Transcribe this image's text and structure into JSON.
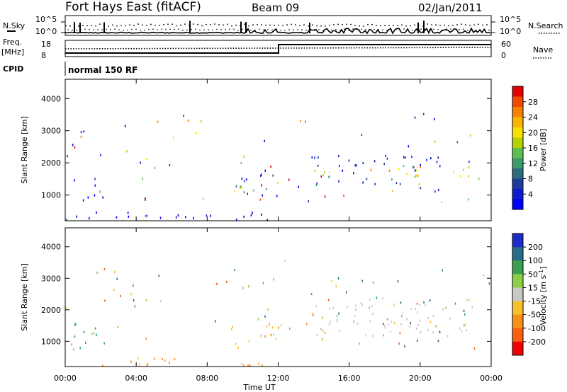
{
  "header": {
    "station": "Fort Hays East (fitACF)",
    "beam": "Beam 09",
    "date": "02/Jan/2011"
  },
  "left_labels": {
    "nsky": "N.Sky",
    "freq": "Freq.",
    "freq_unit": "[MHz]",
    "cpid": "CPID"
  },
  "right_labels": {
    "nsearch": "N.Search",
    "nave": "Nave"
  },
  "cpid_text": "normal 150 RF",
  "noise_axis": {
    "top": "10^5",
    "bottom": "10^0"
  },
  "freq_axis": {
    "left": [
      "18",
      "8"
    ],
    "right": [
      "60",
      "0"
    ]
  },
  "xlabel": "Time UT",
  "colorbars": {
    "power": {
      "title": "Power [dB]",
      "ticks": [
        "28",
        "24",
        "20",
        "16",
        "12",
        "8",
        "4"
      ],
      "colors": [
        "#e00000",
        "#f04a00",
        "#f88000",
        "#f8b400",
        "#f8e000",
        "#b4d200",
        "#5cc050",
        "#3c9c6c",
        "#2c6c80",
        "#1c3c9c",
        "#0c1cd0",
        "#0000f8"
      ]
    },
    "velocity": {
      "title": "Velocity [m s",
      "title_sup": "-1",
      "title_end": "]",
      "ticks": [
        "200",
        "100",
        "50",
        "15",
        "-15",
        "-50",
        "-100",
        "-200"
      ],
      "colors": [
        "#1c2cc8",
        "#2a6a8a",
        "#3aa050",
        "#8ad046",
        "#c8c8c4",
        "#f8c028",
        "#f89018",
        "#f86010",
        "#f00000"
      ]
    }
  },
  "chart_data": [
    {
      "type": "heatmap",
      "title": "Power [dB]",
      "xlabel": "Time UT",
      "ylabel": "Slant Range [km]",
      "xlim": [
        0,
        24
      ],
      "ylim": [
        200,
        4600
      ],
      "xticks": [
        "00:00",
        "04:00",
        "08:00",
        "12:00",
        "16:00",
        "20:00",
        "00:00"
      ],
      "yticks": [
        1000,
        2000,
        3000,
        4000
      ],
      "zlim": [
        0,
        30
      ],
      "regions": [
        {
          "t": [
            0.2,
            1.8
          ],
          "r": [
            850,
            1650
          ],
          "peak_power": 6
        },
        {
          "t": [
            9.0,
            12.0
          ],
          "r": [
            800,
            1900
          ],
          "peak_power": 24
        },
        {
          "t": [
            13.8,
            23.0
          ],
          "r": [
            1200,
            2400
          ],
          "peak_power": 26
        },
        {
          "t": [
            0.0,
            12.2
          ],
          "r": [
            250,
            500
          ],
          "peak_power": 6
        }
      ]
    },
    {
      "type": "heatmap",
      "title": "Velocity [m s-1]",
      "xlabel": "Time UT",
      "ylabel": "Slant Range [km]",
      "xlim": [
        0,
        24
      ],
      "ylim": [
        200,
        4600
      ],
      "xticks": [
        "00:00",
        "04:00",
        "08:00",
        "12:00",
        "16:00",
        "20:00",
        "00:00"
      ],
      "yticks": [
        1000,
        2000,
        3000,
        4000
      ],
      "zlim": [
        -200,
        200
      ],
      "regions": [
        {
          "t": [
            0.2,
            2.2
          ],
          "r": [
            700,
            1700
          ],
          "velocity": 50
        },
        {
          "t": [
            9.0,
            12.0
          ],
          "r": [
            800,
            1700
          ],
          "velocity": -40
        },
        {
          "t": [
            10.5,
            12.0
          ],
          "r": [
            700,
            1000
          ],
          "velocity": 0
        },
        {
          "t": [
            13.8,
            23.0
          ],
          "r": [
            1200,
            2400
          ],
          "velocity": 0
        },
        {
          "t": [
            0.0,
            12.2
          ],
          "r": [
            250,
            500
          ],
          "velocity": -60
        }
      ]
    }
  ]
}
